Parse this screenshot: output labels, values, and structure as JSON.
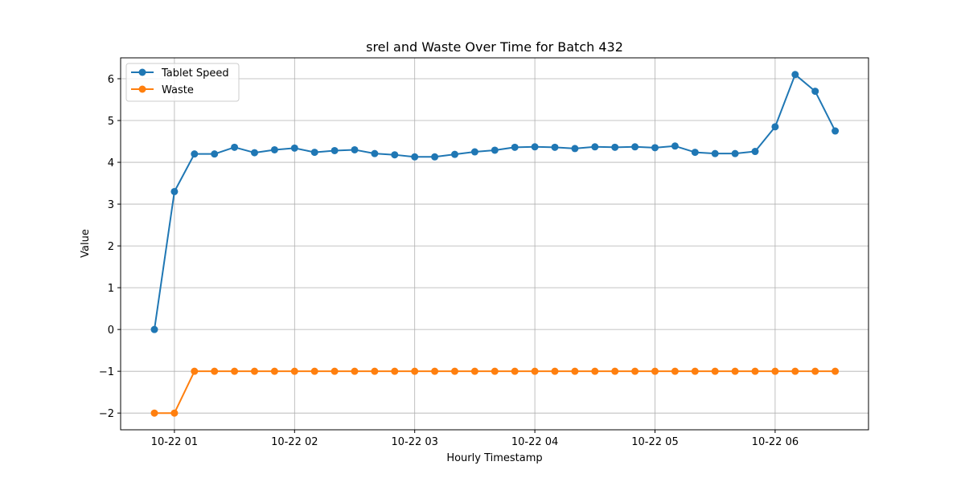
{
  "chart_data": {
    "type": "line",
    "title": "srel and Waste Over Time for Batch 432",
    "xlabel": "Hourly Timestamp",
    "ylabel": "Value",
    "x_labels": [
      "10-22 01",
      "10-22 02",
      "10-22 03",
      "10-22 04",
      "10-22 05",
      "10-22 06"
    ],
    "y_ticks": [
      -2,
      -1,
      0,
      1,
      2,
      3,
      4,
      5,
      6
    ],
    "ylim": [
      -2.4,
      6.5
    ],
    "grid": true,
    "legend_position": "upper-left",
    "series": [
      {
        "name": "Tablet Speed",
        "color": "#1f77b4",
        "values": [
          0.0,
          3.3,
          4.2,
          4.2,
          4.36,
          4.23,
          4.3,
          4.34,
          4.24,
          4.28,
          4.3,
          4.21,
          4.18,
          4.13,
          4.13,
          4.19,
          4.25,
          4.29,
          4.36,
          4.37,
          4.36,
          4.33,
          4.37,
          4.36,
          4.37,
          4.35,
          4.39,
          4.24,
          4.21,
          4.21,
          4.26,
          4.85,
          6.1,
          5.7,
          4.75
        ]
      },
      {
        "name": "Waste",
        "color": "#ff7f0e",
        "values": [
          -2,
          -2,
          -1,
          -1,
          -1,
          -1,
          -1,
          -1,
          -1,
          -1,
          -1,
          -1,
          -1,
          -1,
          -1,
          -1,
          -1,
          -1,
          -1,
          -1,
          -1,
          -1,
          -1,
          -1,
          -1,
          -1,
          -1,
          -1,
          -1,
          -1,
          -1,
          -1,
          -1,
          -1,
          -1
        ]
      }
    ]
  }
}
